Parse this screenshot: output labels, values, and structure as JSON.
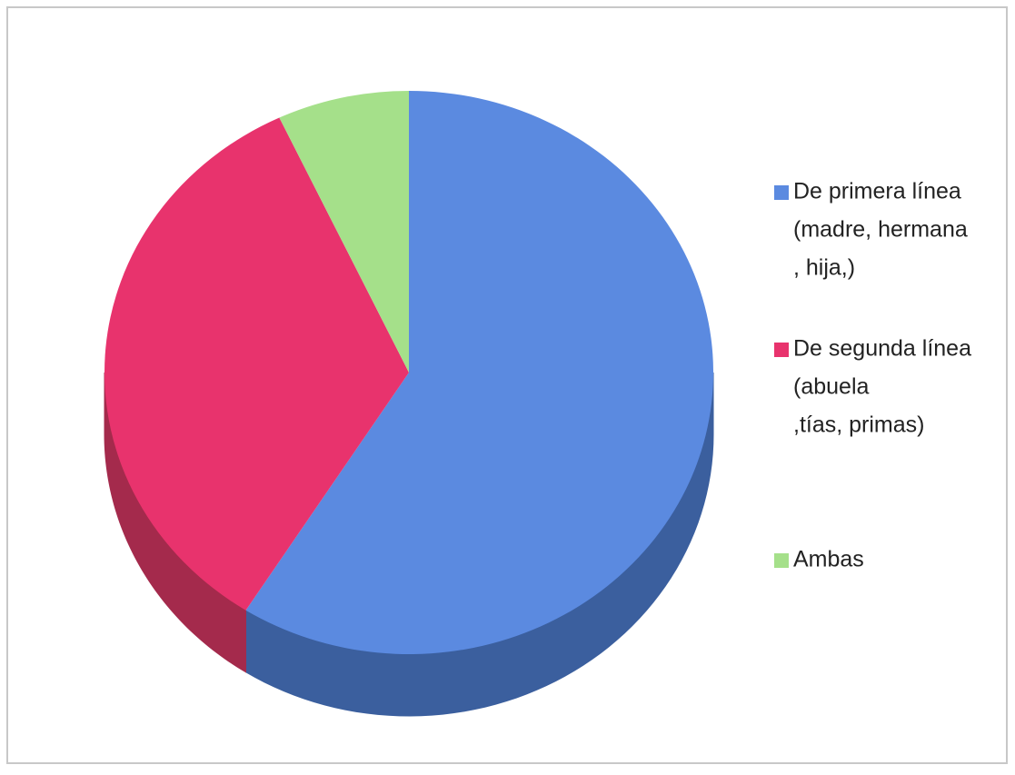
{
  "chart_data": {
    "type": "pie",
    "categories": [
      [
        "De primera línea",
        "(madre, hermana",
        ", hija,)"
      ],
      [
        "De segunda línea",
        "(abuela",
        ",tías, primas)"
      ],
      [
        "Ambas"
      ]
    ],
    "values": [
      59,
      34,
      7
    ],
    "colors": [
      "#5b8ae0",
      "#e8336d",
      "#a5e08a"
    ],
    "side_colors": [
      "#3b5f9e",
      "#a42a4c",
      "#6f9c5c"
    ],
    "legend": "right"
  }
}
